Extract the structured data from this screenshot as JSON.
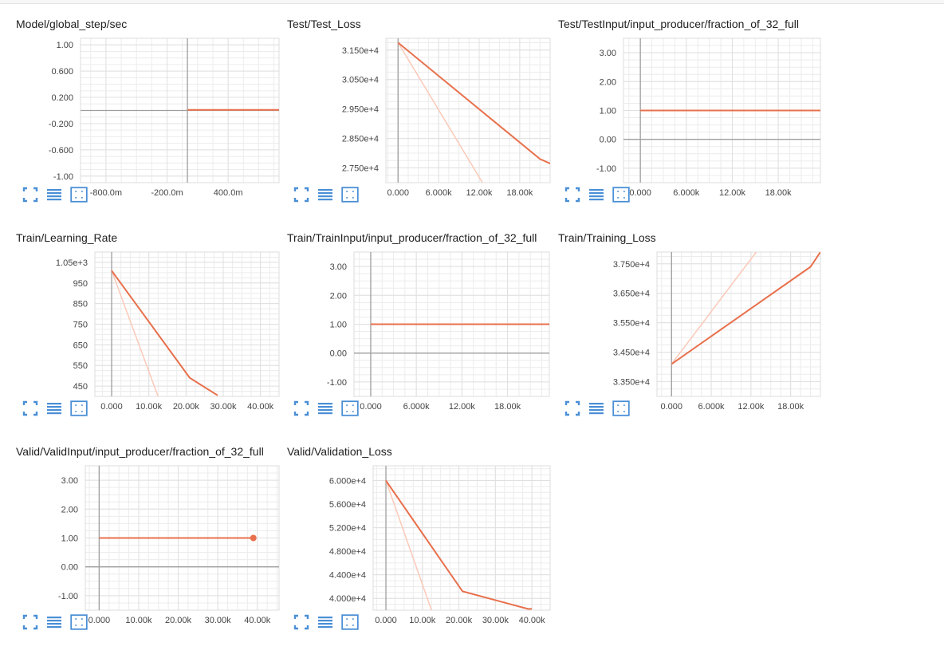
{
  "colors": {
    "accent": "#e8704c",
    "accent_light": "#fbc9b8",
    "grid": "#e0e0e0",
    "axis": "#9e9e9e",
    "icon": "#4a8fd6"
  },
  "toolbar_icons": [
    "expand-icon",
    "list-icon",
    "fit-domain-icon"
  ],
  "cards": [
    {
      "title": "Model/global_step/sec",
      "chart_data": {
        "type": "line",
        "xlim": [
          -1.05,
          0.9
        ],
        "ylim": [
          -1.1,
          1.1
        ],
        "xticks": [
          -0.8,
          -0.2,
          0.4
        ],
        "xticklabels": [
          "-800.0m",
          "-200.0m",
          "400.0m"
        ],
        "yticks": [
          1.0,
          0.6,
          0.2,
          -0.2,
          -0.6,
          -1.0
        ],
        "yticklabels": [
          "1.00",
          "0.600",
          "0.200",
          "-0.200",
          "-0.600",
          "-1.00"
        ],
        "zero_x": true,
        "zero_y": true,
        "series": [
          {
            "values": [
              [
                0,
                0.01
              ],
              [
                0.9,
                0.01
              ]
            ],
            "style": "main"
          }
        ]
      }
    },
    {
      "title": "Test/Test_Loss",
      "chart_data": {
        "type": "line",
        "xlim": [
          -1800,
          22500
        ],
        "ylim": [
          27000,
          31900
        ],
        "xticks": [
          0,
          6000,
          12000,
          18000
        ],
        "xticklabels": [
          "0.000",
          "6.000k",
          "12.00k",
          "18.00k"
        ],
        "yticks": [
          31500,
          30500,
          29500,
          28500,
          27500
        ],
        "yticklabels": [
          "3.150e+4",
          "3.050e+4",
          "2.950e+4",
          "2.850e+4",
          "2.750e+4"
        ],
        "zero_x": true,
        "zero_y": false,
        "series": [
          {
            "values": [
              [
                0,
                31750
              ],
              [
                21000,
                27800
              ],
              [
                22500,
                27650
              ]
            ],
            "style": "main"
          },
          {
            "values": [
              [
                0,
                31750
              ],
              [
                12500,
                27000
              ]
            ],
            "style": "light"
          }
        ]
      }
    },
    {
      "title": "Test/TestInput/input_producer/fraction_of_32_full",
      "chart_data": {
        "type": "line",
        "xlim": [
          -2200,
          23500
        ],
        "ylim": [
          -1.5,
          3.5
        ],
        "xticks": [
          0,
          6000,
          12000,
          18000
        ],
        "xticklabels": [
          "0.000",
          "6.000k",
          "12.00k",
          "18.00k"
        ],
        "yticks": [
          3,
          2,
          1,
          0,
          -1
        ],
        "yticklabels": [
          "3.00",
          "2.00",
          "1.00",
          "0.00",
          "-1.00"
        ],
        "zero_x": true,
        "zero_y": true,
        "series": [
          {
            "values": [
              [
                0,
                1
              ],
              [
                23500,
                1
              ]
            ],
            "style": "main"
          }
        ]
      }
    },
    {
      "title": "Train/Learning_Rate",
      "chart_data": {
        "type": "line",
        "xlim": [
          -4500,
          45000
        ],
        "ylim": [
          400,
          1100
        ],
        "xticks": [
          0,
          10000,
          20000,
          30000,
          40000
        ],
        "xticklabels": [
          "0.000",
          "10.00k",
          "20.00k",
          "30.00k",
          "40.00k"
        ],
        "yticks": [
          1050,
          950,
          850,
          750,
          650,
          550,
          450
        ],
        "yticklabels": [
          "1.05e+3",
          "950",
          "850",
          "750",
          "650",
          "550",
          "450"
        ],
        "zero_x": true,
        "zero_y": false,
        "series": [
          {
            "values": [
              [
                0,
                1010
              ],
              [
                21000,
                490
              ],
              [
                28500,
                405
              ]
            ],
            "style": "main"
          },
          {
            "values": [
              [
                0,
                1010
              ],
              [
                12500,
                400
              ]
            ],
            "style": "light"
          }
        ]
      }
    },
    {
      "title": "Train/TrainInput/input_producer/fraction_of_32_full",
      "chart_data": {
        "type": "line",
        "xlim": [
          -2200,
          23500
        ],
        "ylim": [
          -1.5,
          3.5
        ],
        "xticks": [
          0,
          6000,
          12000,
          18000
        ],
        "xticklabels": [
          "0.000",
          "6.000k",
          "12.00k",
          "18.00k"
        ],
        "yticks": [
          3,
          2,
          1,
          0,
          -1
        ],
        "yticklabels": [
          "3.00",
          "2.00",
          "1.00",
          "0.00",
          "-1.00"
        ],
        "zero_x": true,
        "zero_y": true,
        "series": [
          {
            "values": [
              [
                0,
                1
              ],
              [
                23500,
                1
              ]
            ],
            "style": "main"
          }
        ]
      }
    },
    {
      "title": "Train/Training_Loss",
      "chart_data": {
        "type": "line",
        "xlim": [
          -2200,
          22500
        ],
        "ylim": [
          33000,
          37900
        ],
        "xticks": [
          0,
          6000,
          12000,
          18000
        ],
        "xticklabels": [
          "0.000",
          "6.000k",
          "12.00k",
          "18.00k"
        ],
        "yticks": [
          37500,
          36500,
          35500,
          34500,
          33500
        ],
        "yticklabels": [
          "3.750e+4",
          "3.650e+4",
          "3.550e+4",
          "3.450e+4",
          "3.350e+4"
        ],
        "zero_x": true,
        "zero_y": false,
        "series": [
          {
            "values": [
              [
                0,
                34100
              ],
              [
                21000,
                37400
              ],
              [
                22500,
                37900
              ]
            ],
            "style": "main"
          },
          {
            "values": [
              [
                0,
                34100
              ],
              [
                12800,
                37900
              ]
            ],
            "style": "light"
          }
        ]
      }
    },
    {
      "title": "Valid/ValidInput/input_producer/fraction_of_32_full",
      "chart_data": {
        "type": "line",
        "xlim": [
          -3500,
          45500
        ],
        "ylim": [
          -1.5,
          3.5
        ],
        "xticks": [
          0,
          10000,
          20000,
          30000,
          40000
        ],
        "xticklabels": [
          "0.000",
          "10.00k",
          "20.00k",
          "30.00k",
          "40.00k"
        ],
        "yticks": [
          3,
          2,
          1,
          0,
          -1
        ],
        "yticklabels": [
          "3.00",
          "2.00",
          "1.00",
          "0.00",
          "-1.00"
        ],
        "zero_x": true,
        "zero_y": true,
        "series": [
          {
            "values": [
              [
                0,
                1
              ],
              [
                39000,
                1
              ]
            ],
            "style": "main",
            "endpoint": true
          }
        ]
      }
    },
    {
      "title": "Valid/Validation_Loss",
      "chart_data": {
        "type": "line",
        "xlim": [
          -3500,
          45000
        ],
        "ylim": [
          38000,
          62500
        ],
        "xticks": [
          0,
          10000,
          20000,
          30000,
          40000
        ],
        "xticklabels": [
          "0.000",
          "10.00k",
          "20.00k",
          "30.00k",
          "40.00k"
        ],
        "yticks": [
          60000,
          56000,
          52000,
          48000,
          44000,
          40000
        ],
        "yticklabels": [
          "6.000e+4",
          "5.600e+4",
          "5.200e+4",
          "4.800e+4",
          "4.400e+4",
          "4.000e+4"
        ],
        "zero_x": true,
        "zero_y": false,
        "series": [
          {
            "values": [
              [
                0,
                60000
              ],
              [
                21000,
                41200
              ],
              [
                39000,
                38200
              ],
              [
                40000,
                38250
              ]
            ],
            "style": "main"
          },
          {
            "values": [
              [
                0,
                60000
              ],
              [
                12500,
                38000
              ]
            ],
            "style": "light"
          }
        ]
      }
    }
  ]
}
